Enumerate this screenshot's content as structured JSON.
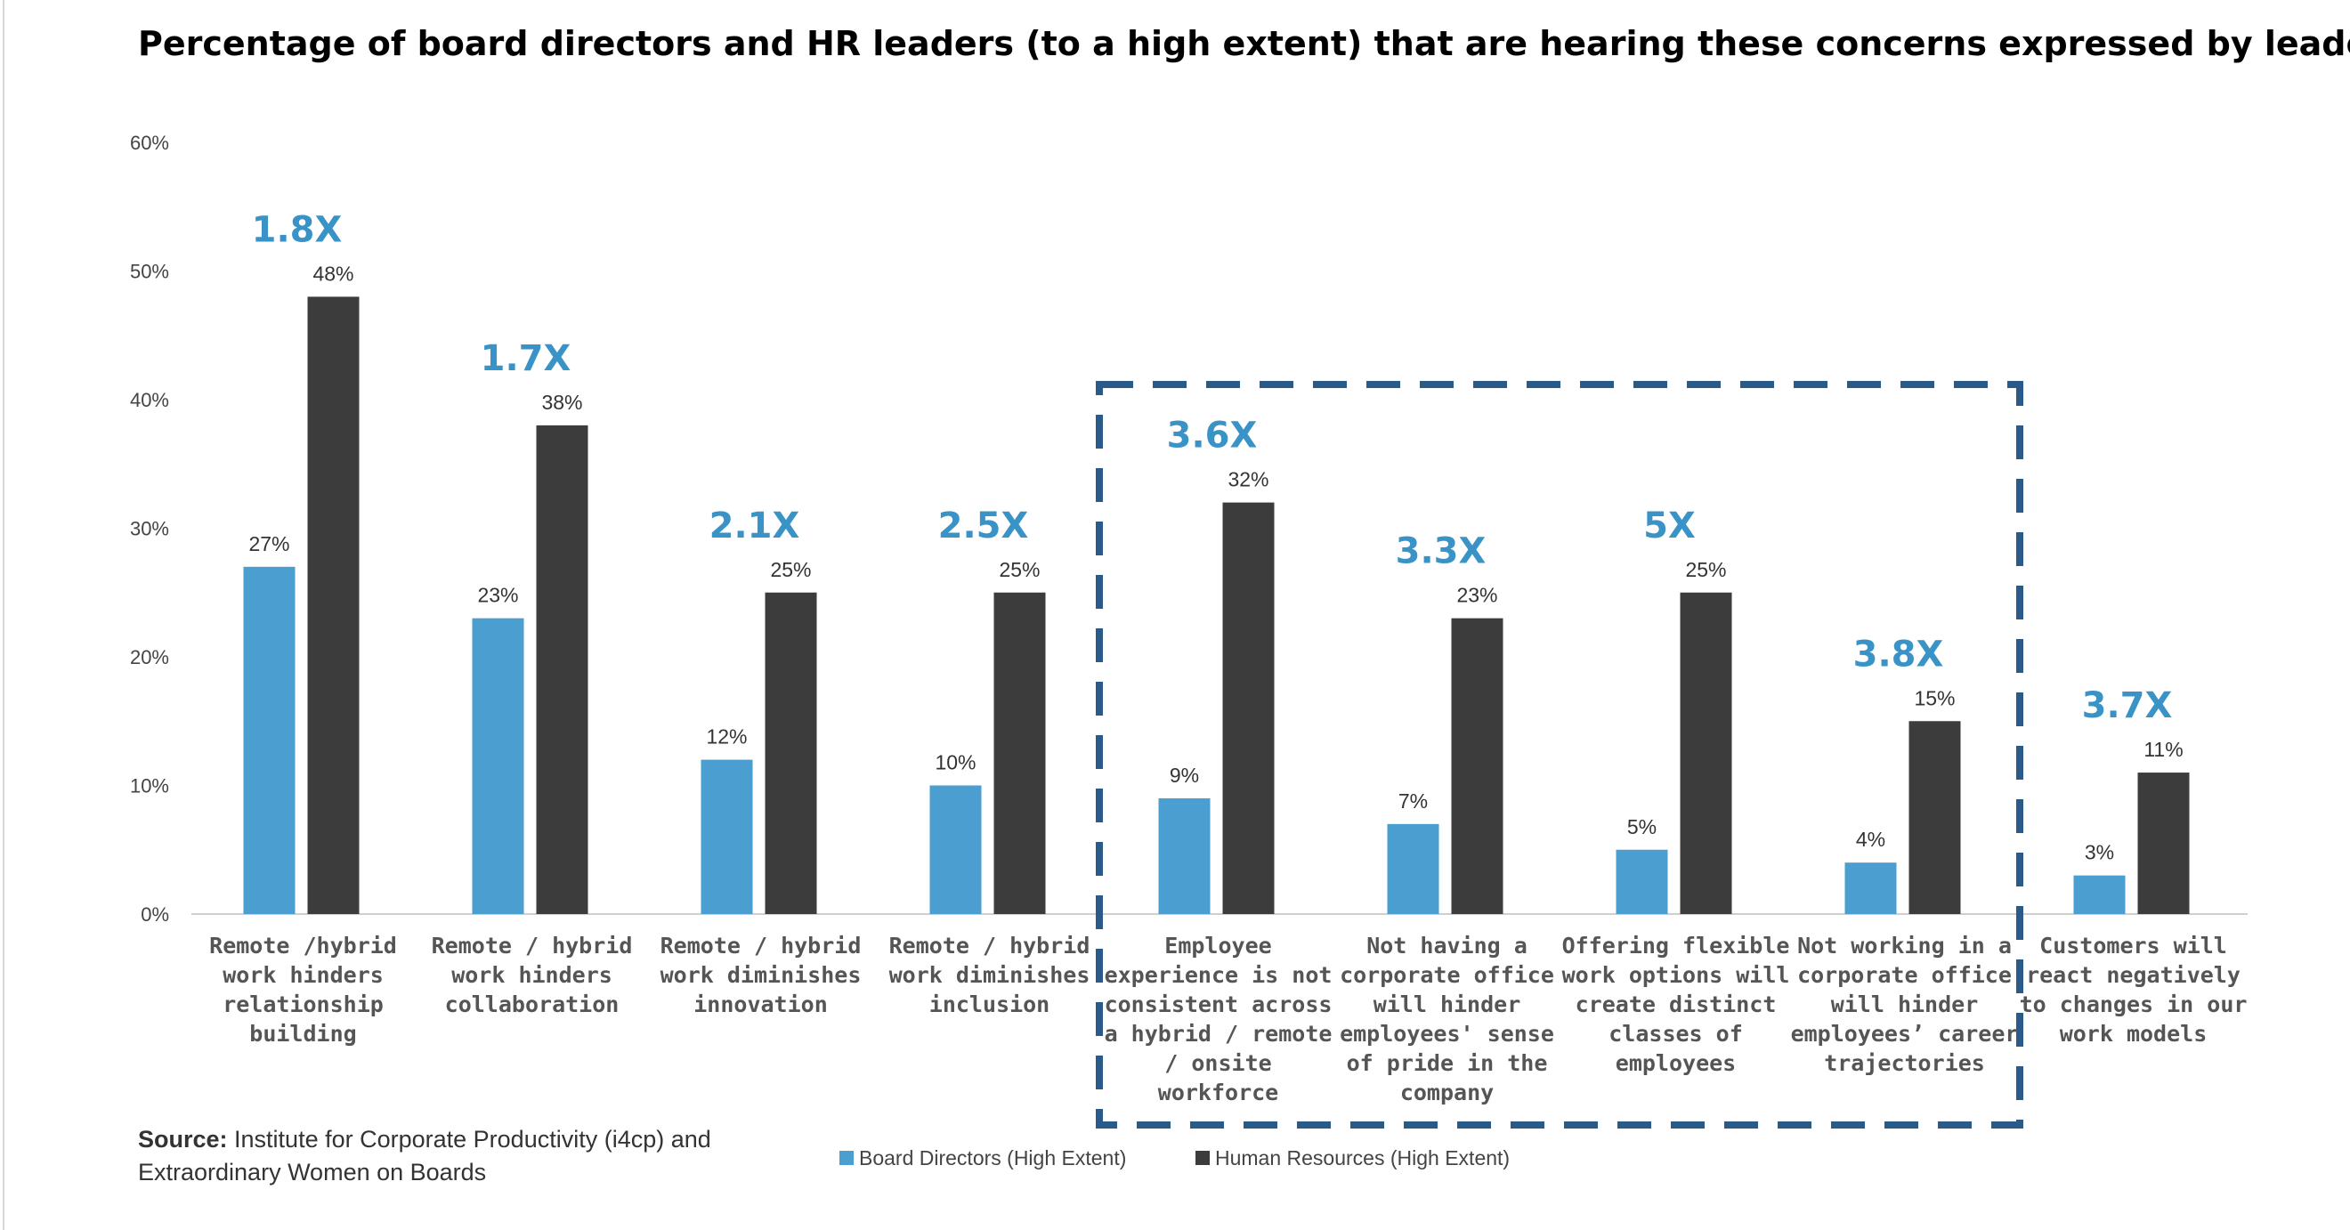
{
  "chart_data": {
    "type": "bar",
    "title": "Percentage of board directors and HR leaders (to a high extent) that are hearing these concerns expressed by leaders",
    "ylim": [
      0,
      60
    ],
    "yticks": [
      "0%",
      "10%",
      "20%",
      "30%",
      "40%",
      "50%",
      "60%"
    ],
    "grid": false,
    "legend_position": "bottom-center",
    "categories": [
      [
        "Remote  /hybrid",
        "work hinders",
        "relationship",
        "building"
      ],
      [
        "Remote / hybrid",
        "work hinders",
        "collaboration"
      ],
      [
        "Remote / hybrid",
        "work diminishes",
        "innovation"
      ],
      [
        "Remote / hybrid",
        "work diminishes",
        "inclusion"
      ],
      [
        "Employee",
        "experience is not",
        "consistent across",
        "a hybrid / remote",
        "/ onsite",
        "workforce"
      ],
      [
        "Not having a",
        "corporate office",
        "will hinder",
        "employees' sense",
        "of pride in the",
        "company"
      ],
      [
        "Offering flexible",
        "work options will",
        "create distinct",
        "classes of",
        "employees"
      ],
      [
        "Not working in a",
        "corporate office",
        "will hinder",
        "employees’ career",
        "trajectories"
      ],
      [
        "Customers will",
        "react negatively",
        "to changes in our",
        "work models"
      ]
    ],
    "series": [
      {
        "name": "Board Directors (High Extent)",
        "color": "#4A9FD0",
        "values": [
          27,
          23,
          12,
          10,
          9,
          7,
          5,
          4,
          3
        ],
        "labels": [
          "27%",
          "23%",
          "12%",
          "10%",
          "9%",
          "7%",
          "5%",
          "4%",
          "3%"
        ]
      },
      {
        "name": "Human Resources (High Extent)",
        "color": "#3C3C3C",
        "values": [
          48,
          38,
          25,
          25,
          32,
          23,
          25,
          15,
          11
        ],
        "labels": [
          "48%",
          "38%",
          "25%",
          "25%",
          "32%",
          "23%",
          "25%",
          "15%",
          "11%"
        ]
      }
    ],
    "multipliers": [
      "1.8X",
      "1.7X",
      "2.1X",
      "2.5X",
      "3.6X",
      "3.3X",
      "5X",
      "3.8X",
      "3.7X"
    ],
    "multiplier_color": "#3A93C6",
    "highlight_box": {
      "from_category": 4,
      "to_category": 7,
      "color": "#2A5A8A",
      "style": "dashed"
    }
  },
  "source": {
    "label": "Source:",
    "line1": " Institute for Corporate Productivity (i4cp) and",
    "line2": "Extraordinary Women on Boards"
  }
}
